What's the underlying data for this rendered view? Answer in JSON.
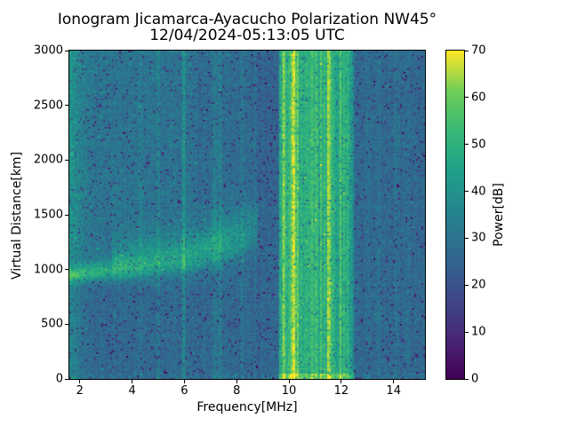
{
  "figure": {
    "title": "Ionogram Jicamarca-Ayacucho Polarization NW45°",
    "subtitle": "12/04/2024-05:13:05 UTC"
  },
  "chart_data": {
    "type": "heatmap",
    "title": "Ionogram Jicamarca-Ayacucho Polarization NW45°",
    "subtitle": "12/04/2024-05:13:05 UTC",
    "xlabel": "Frequency[MHz]",
    "ylabel": "Virtual Distance[km]",
    "colorbar_label": "Power[dB]",
    "xlim": [
      1.6,
      15.2
    ],
    "ylim": [
      0,
      3000
    ],
    "clim": [
      0,
      70
    ],
    "xticks": [
      2,
      4,
      6,
      8,
      10,
      12,
      14
    ],
    "yticks": [
      0,
      500,
      1000,
      1500,
      2000,
      2500,
      3000
    ],
    "cticks": [
      0,
      10,
      20,
      30,
      40,
      50,
      60,
      70
    ],
    "grid": false,
    "legend": "colorbar-right",
    "colormap": "viridis",
    "colormap_stops": [
      [
        0.0,
        68,
        1,
        84
      ],
      [
        0.125,
        72,
        40,
        120
      ],
      [
        0.25,
        62,
        74,
        137
      ],
      [
        0.375,
        49,
        104,
        142
      ],
      [
        0.5,
        38,
        130,
        142
      ],
      [
        0.625,
        31,
        158,
        137
      ],
      [
        0.75,
        53,
        183,
        121
      ],
      [
        0.875,
        109,
        205,
        89
      ],
      [
        1.0,
        253,
        231,
        37
      ]
    ],
    "background": {
      "mean_db": 28.5,
      "pixel_noise_db": 9,
      "row_jitter_db": 2,
      "col_jitter_db": 2.5,
      "dark_speckle_fraction": 0.045,
      "left_band": {
        "range": [
          1.6,
          2.45
        ],
        "max_db": 10
      },
      "rfi_band": {
        "range": [
          9.6,
          12.45
        ],
        "base_db": 6,
        "col_jitter_db": 8
      },
      "dim_zones": [
        {
          "range": [
            8.55,
            9.6
          ],
          "db": -2.5
        },
        {
          "range": [
            12.45,
            15.3
          ],
          "db": -2
        }
      ],
      "high_alt_dim": {
        "range": [
          6.5,
          9.6
        ],
        "above_km": 1600,
        "db": -1.5
      },
      "ground_clutter": {
        "below_km": 50,
        "band_db": 7,
        "sporadic_db": 4,
        "sporadic_fraction": 0.28
      }
    },
    "echo_trace": {
      "description": "F-region echo: bright blob near 2 MHz at ~950-1050 km, diffuse spread trace rising to ~1250 km and fading by ~8.8 MHz",
      "start_freq_mhz": 1.6,
      "base_height_km": 950,
      "slope_km_per_mhz": 28,
      "knee_freq_mhz": 6,
      "extra_slope_km_per_mhz": 45,
      "end_freq_mhz": 8.9,
      "peak_db_points": [
        [
          1.6,
          22
        ],
        [
          2.6,
          22
        ],
        [
          5.0,
          12
        ],
        [
          7.5,
          10
        ],
        [
          8.9,
          0
        ]
      ],
      "width_km_points": [
        [
          1.6,
          46
        ],
        [
          8.9,
          135
        ]
      ],
      "diffuse": {
        "range": [
          3.2,
          8.8
        ],
        "offset_km": 130,
        "sigma_km": 150,
        "db": 7
      },
      "above_trace_glow_db": 2.2,
      "below_trace_dim_db": -2.2
    },
    "rfi_lines": [
      {
        "f": 4.35,
        "amp": 3,
        "w": 0.05
      },
      {
        "f": 5.0,
        "amp": 5,
        "w": 0.045
      },
      {
        "f": 5.98,
        "amp": 11,
        "w": 0.05
      },
      {
        "f": 7.17,
        "amp": 6,
        "w": 0.045
      },
      {
        "f": 7.37,
        "amp": 7,
        "w": 0.045
      },
      {
        "f": 8.2,
        "amp": 4,
        "w": 0.04
      },
      {
        "f": 8.7,
        "amp": 5,
        "w": 0.04
      },
      {
        "f": 9.68,
        "amp": 8,
        "w": 0.05
      },
      {
        "f": 9.8,
        "amp": 24,
        "w": 0.05
      },
      {
        "f": 9.95,
        "amp": 10,
        "w": 0.05
      },
      {
        "f": 10.05,
        "amp": 12,
        "w": 0.05
      },
      {
        "f": 10.18,
        "amp": 30,
        "w": 0.055
      },
      {
        "f": 10.32,
        "amp": 18,
        "w": 0.05
      },
      {
        "f": 10.45,
        "amp": 12,
        "w": 0.05
      },
      {
        "f": 10.6,
        "amp": 14,
        "w": 0.05
      },
      {
        "f": 10.72,
        "amp": 10,
        "w": 0.05
      },
      {
        "f": 10.85,
        "amp": 16,
        "w": 0.05
      },
      {
        "f": 11.0,
        "amp": 12,
        "w": 0.05
      },
      {
        "f": 11.12,
        "amp": 10,
        "w": 0.05
      },
      {
        "f": 11.25,
        "amp": 14,
        "w": 0.05
      },
      {
        "f": 11.38,
        "amp": 10,
        "w": 0.05
      },
      {
        "f": 11.52,
        "amp": 28,
        "w": 0.055
      },
      {
        "f": 11.65,
        "amp": 12,
        "w": 0.05
      },
      {
        "f": 11.8,
        "amp": 10,
        "w": 0.05
      },
      {
        "f": 11.95,
        "amp": 14,
        "w": 0.05
      },
      {
        "f": 12.1,
        "amp": 16,
        "w": 0.05
      },
      {
        "f": 12.25,
        "amp": 10,
        "w": 0.05
      },
      {
        "f": 12.38,
        "amp": 8,
        "w": 0.05
      },
      {
        "f": 13.05,
        "amp": 3.5,
        "w": 0.05
      },
      {
        "f": 13.45,
        "amp": 3.5,
        "w": 0.05
      },
      {
        "f": 14.1,
        "amp": 3,
        "w": 0.05
      },
      {
        "f": 14.55,
        "amp": 3,
        "w": 0.05
      }
    ]
  }
}
